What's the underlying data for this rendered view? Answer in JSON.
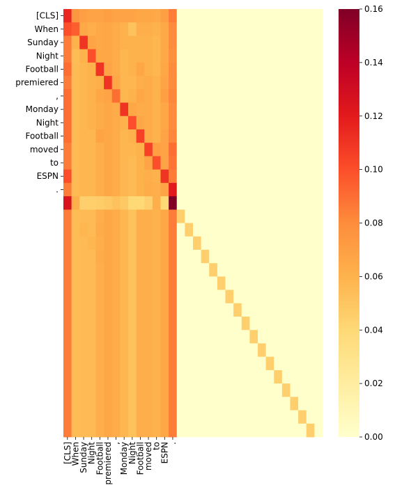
{
  "chart_data": {
    "type": "heatmap",
    "title": "",
    "xlabel": "",
    "ylabel": "",
    "row_labels": [
      "[CLS]",
      "When",
      "Sunday",
      "Night",
      "Football",
      "premiered",
      ",",
      "Monday",
      "Night",
      "Football",
      "moved",
      "to",
      "ESPN",
      ".",
      "",
      "",
      "",
      "",
      "",
      "",
      "",
      "",
      "",
      "",
      "",
      "",
      "",
      "",
      "",
      "",
      "",
      ""
    ],
    "column_labels": [
      "[CLS]",
      "When",
      "Sunday",
      "Night",
      "Football",
      "premiered",
      ",",
      "Monday",
      "Night",
      "Football",
      "moved",
      "to",
      "ESPN",
      ".",
      "",
      "",
      "",
      "",
      "",
      "",
      "",
      "",
      "",
      "",
      "",
      "",
      "",
      "",
      "",
      "",
      "",
      ""
    ],
    "colormap": [
      "#ffffcc",
      "#ffeda0",
      "#fed976",
      "#feb24c",
      "#fd8d3c",
      "#fc4e2a",
      "#e31a1c",
      "#bd0026",
      "#800026"
    ],
    "colorbar": {
      "min": 0.0,
      "max": 0.16,
      "ticks": [
        "0.00",
        "0.02",
        "0.04",
        "0.06",
        "0.08",
        "0.10",
        "0.12",
        "0.14",
        "0.16"
      ]
    },
    "values": [
      [
        0.115,
        0.075,
        0.07,
        0.068,
        0.068,
        0.07,
        0.068,
        0.068,
        0.068,
        0.066,
        0.066,
        0.065,
        0.07,
        0.085,
        0,
        0,
        0,
        0,
        0,
        0,
        0,
        0,
        0,
        0,
        0,
        0,
        0,
        0,
        0,
        0,
        0,
        0
      ],
      [
        0.1,
        0.095,
        0.065,
        0.062,
        0.065,
        0.066,
        0.064,
        0.06,
        0.052,
        0.062,
        0.062,
        0.06,
        0.065,
        0.08,
        0,
        0,
        0,
        0,
        0,
        0,
        0,
        0,
        0,
        0,
        0,
        0,
        0,
        0,
        0,
        0,
        0,
        0
      ],
      [
        0.085,
        0.06,
        0.11,
        0.068,
        0.065,
        0.066,
        0.064,
        0.06,
        0.06,
        0.06,
        0.06,
        0.058,
        0.065,
        0.08,
        0,
        0,
        0,
        0,
        0,
        0,
        0,
        0,
        0,
        0,
        0,
        0,
        0,
        0,
        0,
        0,
        0,
        0
      ],
      [
        0.085,
        0.055,
        0.06,
        0.1,
        0.066,
        0.066,
        0.064,
        0.058,
        0.06,
        0.06,
        0.06,
        0.058,
        0.065,
        0.078,
        0,
        0,
        0,
        0,
        0,
        0,
        0,
        0,
        0,
        0,
        0,
        0,
        0,
        0,
        0,
        0,
        0,
        0
      ],
      [
        0.09,
        0.056,
        0.058,
        0.06,
        0.11,
        0.068,
        0.064,
        0.058,
        0.06,
        0.066,
        0.06,
        0.058,
        0.066,
        0.08,
        0,
        0,
        0,
        0,
        0,
        0,
        0,
        0,
        0,
        0,
        0,
        0,
        0,
        0,
        0,
        0,
        0,
        0
      ],
      [
        0.085,
        0.056,
        0.058,
        0.06,
        0.062,
        0.11,
        0.066,
        0.058,
        0.058,
        0.062,
        0.064,
        0.06,
        0.068,
        0.08,
        0,
        0,
        0,
        0,
        0,
        0,
        0,
        0,
        0,
        0,
        0,
        0,
        0,
        0,
        0,
        0,
        0,
        0
      ],
      [
        0.09,
        0.056,
        0.058,
        0.06,
        0.066,
        0.068,
        0.09,
        0.058,
        0.06,
        0.066,
        0.064,
        0.06,
        0.07,
        0.082,
        0,
        0,
        0,
        0,
        0,
        0,
        0,
        0,
        0,
        0,
        0,
        0,
        0,
        0,
        0,
        0,
        0,
        0
      ],
      [
        0.09,
        0.056,
        0.058,
        0.06,
        0.064,
        0.066,
        0.064,
        0.11,
        0.066,
        0.064,
        0.064,
        0.06,
        0.066,
        0.08,
        0,
        0,
        0,
        0,
        0,
        0,
        0,
        0,
        0,
        0,
        0,
        0,
        0,
        0,
        0,
        0,
        0,
        0
      ],
      [
        0.09,
        0.056,
        0.058,
        0.06,
        0.064,
        0.066,
        0.064,
        0.06,
        0.1,
        0.066,
        0.064,
        0.06,
        0.066,
        0.08,
        0,
        0,
        0,
        0,
        0,
        0,
        0,
        0,
        0,
        0,
        0,
        0,
        0,
        0,
        0,
        0,
        0,
        0
      ],
      [
        0.09,
        0.056,
        0.058,
        0.058,
        0.068,
        0.066,
        0.064,
        0.058,
        0.06,
        0.105,
        0.064,
        0.06,
        0.068,
        0.082,
        0,
        0,
        0,
        0,
        0,
        0,
        0,
        0,
        0,
        0,
        0,
        0,
        0,
        0,
        0,
        0,
        0,
        0
      ],
      [
        0.085,
        0.056,
        0.058,
        0.058,
        0.062,
        0.066,
        0.064,
        0.058,
        0.058,
        0.06,
        0.105,
        0.07,
        0.068,
        0.09,
        0,
        0,
        0,
        0,
        0,
        0,
        0,
        0,
        0,
        0,
        0,
        0,
        0,
        0,
        0,
        0,
        0,
        0
      ],
      [
        0.085,
        0.056,
        0.058,
        0.058,
        0.062,
        0.066,
        0.064,
        0.058,
        0.056,
        0.06,
        0.068,
        0.1,
        0.068,
        0.088,
        0,
        0,
        0,
        0,
        0,
        0,
        0,
        0,
        0,
        0,
        0,
        0,
        0,
        0,
        0,
        0,
        0,
        0
      ],
      [
        0.1,
        0.056,
        0.058,
        0.058,
        0.062,
        0.066,
        0.064,
        0.058,
        0.056,
        0.06,
        0.062,
        0.06,
        0.11,
        0.085,
        0,
        0,
        0,
        0,
        0,
        0,
        0,
        0,
        0,
        0,
        0,
        0,
        0,
        0,
        0,
        0,
        0,
        0
      ],
      [
        0.085,
        0.056,
        0.058,
        0.058,
        0.062,
        0.066,
        0.064,
        0.058,
        0.056,
        0.06,
        0.064,
        0.062,
        0.068,
        0.12,
        0,
        0,
        0,
        0,
        0,
        0,
        0,
        0,
        0,
        0,
        0,
        0,
        0,
        0,
        0,
        0,
        0,
        0
      ],
      [
        0.125,
        0.062,
        0.045,
        0.045,
        0.046,
        0.048,
        0.052,
        0.048,
        0.04,
        0.04,
        0.045,
        0.062,
        0.04,
        0.16,
        0,
        0,
        0,
        0,
        0,
        0,
        0,
        0,
        0,
        0,
        0,
        0,
        0,
        0,
        0,
        0,
        0,
        0
      ],
      [
        0.085,
        0.055,
        0.056,
        0.056,
        0.062,
        0.066,
        0.064,
        0.058,
        0.052,
        0.062,
        0.062,
        0.06,
        0.066,
        0.085,
        0.045,
        0,
        0,
        0,
        0,
        0,
        0,
        0,
        0,
        0,
        0,
        0,
        0,
        0,
        0,
        0,
        0,
        0
      ],
      [
        0.085,
        0.055,
        0.058,
        0.056,
        0.064,
        0.066,
        0.064,
        0.058,
        0.052,
        0.062,
        0.062,
        0.06,
        0.066,
        0.085,
        0,
        0.045,
        0,
        0,
        0,
        0,
        0,
        0,
        0,
        0,
        0,
        0,
        0,
        0,
        0,
        0,
        0,
        0
      ],
      [
        0.085,
        0.055,
        0.056,
        0.058,
        0.062,
        0.066,
        0.064,
        0.058,
        0.052,
        0.062,
        0.062,
        0.06,
        0.066,
        0.085,
        0,
        0,
        0.045,
        0,
        0,
        0,
        0,
        0,
        0,
        0,
        0,
        0,
        0,
        0,
        0,
        0,
        0,
        0
      ],
      [
        0.085,
        0.055,
        0.056,
        0.056,
        0.064,
        0.066,
        0.064,
        0.058,
        0.052,
        0.062,
        0.062,
        0.06,
        0.066,
        0.085,
        0,
        0,
        0,
        0.045,
        0,
        0,
        0,
        0,
        0,
        0,
        0,
        0,
        0,
        0,
        0,
        0,
        0,
        0
      ],
      [
        0.085,
        0.055,
        0.056,
        0.056,
        0.062,
        0.066,
        0.064,
        0.058,
        0.052,
        0.062,
        0.062,
        0.06,
        0.066,
        0.085,
        0,
        0,
        0,
        0,
        0.045,
        0,
        0,
        0,
        0,
        0,
        0,
        0,
        0,
        0,
        0,
        0,
        0,
        0
      ],
      [
        0.085,
        0.055,
        0.056,
        0.056,
        0.062,
        0.066,
        0.064,
        0.058,
        0.052,
        0.062,
        0.062,
        0.06,
        0.066,
        0.085,
        0,
        0,
        0,
        0,
        0,
        0.045,
        0,
        0,
        0,
        0,
        0,
        0,
        0,
        0,
        0,
        0,
        0,
        0
      ],
      [
        0.085,
        0.055,
        0.056,
        0.056,
        0.062,
        0.066,
        0.064,
        0.058,
        0.052,
        0.062,
        0.062,
        0.06,
        0.066,
        0.085,
        0,
        0,
        0,
        0,
        0,
        0,
        0.045,
        0,
        0,
        0,
        0,
        0,
        0,
        0,
        0,
        0,
        0,
        0
      ],
      [
        0.085,
        0.055,
        0.056,
        0.056,
        0.062,
        0.066,
        0.064,
        0.058,
        0.052,
        0.062,
        0.062,
        0.06,
        0.066,
        0.085,
        0,
        0,
        0,
        0,
        0,
        0,
        0,
        0.045,
        0,
        0,
        0,
        0,
        0,
        0,
        0,
        0,
        0,
        0
      ],
      [
        0.085,
        0.055,
        0.056,
        0.056,
        0.062,
        0.066,
        0.064,
        0.058,
        0.052,
        0.062,
        0.062,
        0.06,
        0.066,
        0.085,
        0,
        0,
        0,
        0,
        0,
        0,
        0,
        0,
        0.045,
        0,
        0,
        0,
        0,
        0,
        0,
        0,
        0,
        0
      ],
      [
        0.085,
        0.055,
        0.056,
        0.056,
        0.062,
        0.066,
        0.064,
        0.058,
        0.052,
        0.062,
        0.062,
        0.06,
        0.066,
        0.085,
        0,
        0,
        0,
        0,
        0,
        0,
        0,
        0,
        0,
        0.045,
        0,
        0,
        0,
        0,
        0,
        0,
        0,
        0
      ],
      [
        0.085,
        0.055,
        0.056,
        0.056,
        0.062,
        0.066,
        0.064,
        0.058,
        0.052,
        0.062,
        0.062,
        0.06,
        0.066,
        0.085,
        0,
        0,
        0,
        0,
        0,
        0,
        0,
        0,
        0,
        0,
        0.045,
        0,
        0,
        0,
        0,
        0,
        0,
        0
      ],
      [
        0.085,
        0.055,
        0.056,
        0.056,
        0.062,
        0.066,
        0.064,
        0.058,
        0.052,
        0.062,
        0.062,
        0.06,
        0.066,
        0.085,
        0,
        0,
        0,
        0,
        0,
        0,
        0,
        0,
        0,
        0,
        0,
        0.045,
        0,
        0,
        0,
        0,
        0,
        0
      ],
      [
        0.085,
        0.055,
        0.056,
        0.056,
        0.062,
        0.066,
        0.064,
        0.058,
        0.052,
        0.062,
        0.062,
        0.06,
        0.066,
        0.085,
        0,
        0,
        0,
        0,
        0,
        0,
        0,
        0,
        0,
        0,
        0,
        0,
        0.045,
        0,
        0,
        0,
        0,
        0
      ],
      [
        0.085,
        0.055,
        0.056,
        0.056,
        0.062,
        0.066,
        0.064,
        0.058,
        0.052,
        0.062,
        0.062,
        0.06,
        0.066,
        0.085,
        0,
        0,
        0,
        0,
        0,
        0,
        0,
        0,
        0,
        0,
        0,
        0,
        0,
        0.045,
        0,
        0,
        0,
        0
      ],
      [
        0.085,
        0.055,
        0.056,
        0.056,
        0.062,
        0.066,
        0.064,
        0.058,
        0.052,
        0.062,
        0.062,
        0.06,
        0.066,
        0.085,
        0,
        0,
        0,
        0,
        0,
        0,
        0,
        0,
        0,
        0,
        0,
        0,
        0,
        0,
        0.045,
        0,
        0,
        0
      ],
      [
        0.085,
        0.055,
        0.056,
        0.056,
        0.062,
        0.066,
        0.064,
        0.058,
        0.052,
        0.062,
        0.062,
        0.06,
        0.066,
        0.085,
        0,
        0,
        0,
        0,
        0,
        0,
        0,
        0,
        0,
        0,
        0,
        0,
        0,
        0,
        0,
        0.045,
        0,
        0
      ],
      [
        0.085,
        0.055,
        0.056,
        0.056,
        0.062,
        0.066,
        0.064,
        0.058,
        0.052,
        0.062,
        0.062,
        0.06,
        0.066,
        0.085,
        0,
        0,
        0,
        0,
        0,
        0,
        0,
        0,
        0,
        0,
        0,
        0,
        0,
        0,
        0,
        0,
        0.045,
        0
      ]
    ]
  }
}
